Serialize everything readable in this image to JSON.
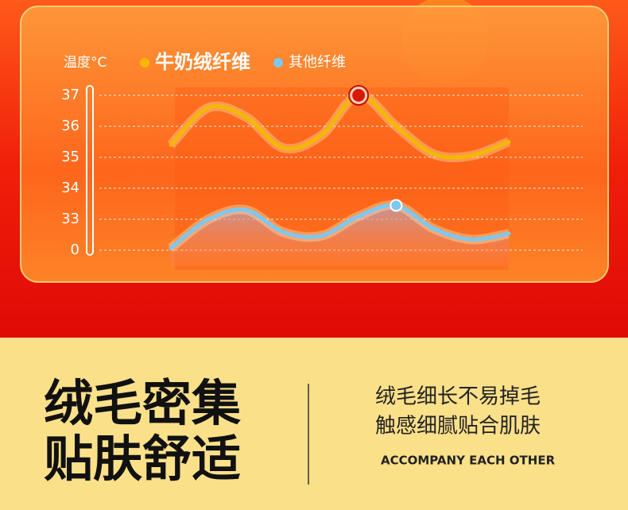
{
  "chart_data": {
    "type": "line",
    "y_label": "温度°C",
    "categories": [
      null,
      null,
      null,
      null,
      null,
      null,
      null,
      null,
      null,
      null
    ],
    "series": [
      {
        "name": "牛奶绒纤维",
        "color": "#f5b800",
        "values": [
          35.4,
          36.6,
          36.3,
          35.3,
          35.7,
          37,
          36.0,
          35.1,
          35.05,
          35.5
        ],
        "highlight": 5
      },
      {
        "name": "其他纤维",
        "color": "#7ec8f0",
        "values": [
          2.3,
          33,
          33.3,
          19.2,
          15.3,
          33.1,
          33.45,
          23.0,
          11.5,
          17.7
        ],
        "highlight": 6
      }
    ],
    "ylim": [
      0,
      37
    ],
    "yticks": [
      37,
      36,
      35,
      34,
      33,
      0
    ],
    "grid": true
  },
  "footer": {
    "headline": [
      "绒毛密集",
      "贴肤舒适"
    ],
    "lines": [
      "绒毛细长不易掉毛",
      "触感细腻贴合肌肤"
    ],
    "tagline": "ACCOMPANY EACH OTHER"
  }
}
